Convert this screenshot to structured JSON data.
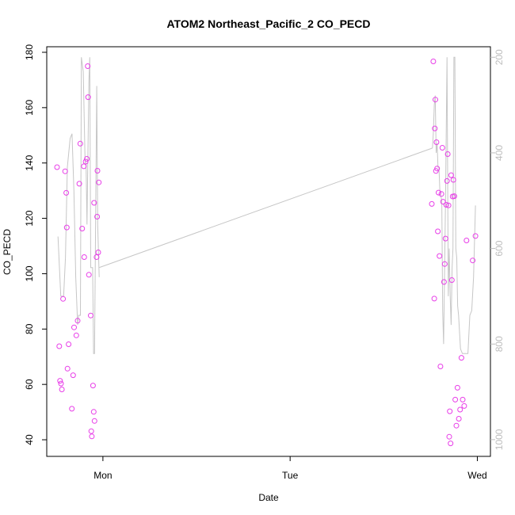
{
  "chart_data": {
    "type": "scatter",
    "title": "ATOM2 Northeast_Pacific_2 CO_PECD",
    "xlabel": "Date",
    "ylabel": "CO_PECD",
    "x_ticks": [
      "Mon",
      "Tue",
      "Wed"
    ],
    "x_tick_days": [
      1,
      2,
      3
    ],
    "xlim_days": [
      0.7,
      3.07
    ],
    "ylim": [
      34,
      182
    ],
    "y_ticks": [
      40,
      60,
      80,
      100,
      120,
      140,
      160,
      180
    ],
    "y2_ticks": [
      200,
      400,
      600,
      800,
      1000
    ],
    "y2lim": [
      1035,
      178
    ],
    "y2_reversed": true,
    "colors": {
      "points": "#e83ee8",
      "line": "#c6c6c6"
    },
    "series": [
      {
        "values_x_days": [
          0.755,
          0.767,
          0.771,
          0.776,
          0.781,
          0.787,
          0.798,
          0.804,
          0.807,
          0.811,
          0.817,
          0.834,
          0.841,
          0.846,
          0.858,
          0.865,
          0.874,
          0.879,
          0.889,
          0.898,
          0.9,
          0.908,
          0.914,
          0.919,
          0.921,
          0.925,
          0.935,
          0.938,
          0.941,
          0.947,
          0.951,
          0.953,
          0.955,
          0.966,
          0.969,
          0.971,
          0.975,
          0.978,
          2.757,
          2.765,
          2.77,
          2.773,
          2.776,
          2.779,
          2.782,
          2.785,
          2.789,
          2.793,
          2.798,
          2.803,
          2.808,
          2.813,
          2.817,
          2.822,
          2.826,
          2.83,
          2.834,
          2.838,
          2.842,
          2.846,
          2.85,
          2.853,
          2.857,
          2.86,
          2.864,
          2.868,
          2.872,
          2.877,
          2.882,
          2.888,
          2.894,
          2.901,
          2.908,
          2.915,
          2.922,
          2.93,
          2.942,
          2.975,
          2.99
        ],
        "values_y": [
          138.5,
          73.8,
          61.3,
          60.3,
          58.2,
          90.9,
          137.0,
          129.2,
          116.7,
          65.7,
          74.5,
          51.2,
          63.3,
          80.6,
          77.7,
          83.0,
          132.5,
          147.0,
          116.3,
          138.8,
          106.0,
          140.5,
          141.5,
          175.0,
          163.8,
          99.6,
          84.9,
          43.1,
          41.2,
          59.6,
          50.1,
          125.6,
          46.8,
          106.0,
          120.6,
          137.2,
          107.7,
          133.0,
          125.2,
          176.7,
          91.0,
          152.5,
          162.9,
          137.1,
          147.5,
          138.0,
          115.3,
          129.3,
          106.4,
          66.5,
          128.8,
          145.5,
          126.0,
          97.0,
          103.5,
          112.7,
          124.9,
          133.5,
          143.2,
          124.7,
          41.1,
          50.3,
          38.7,
          135.6,
          97.7,
          127.9,
          133.9,
          128.0,
          54.5,
          45.1,
          58.8,
          47.6,
          50.9,
          69.6,
          54.5,
          52.2,
          112.0,
          104.8,
          113.6
        ]
      },
      {
        "values_x_days": [
          0.76,
          0.775,
          0.79,
          0.8,
          0.81,
          0.825,
          0.835,
          0.845,
          0.855,
          0.865,
          0.87,
          0.88,
          0.885,
          0.895,
          0.905,
          0.91,
          0.915,
          0.925,
          0.93,
          0.935,
          0.945,
          0.95,
          0.955,
          0.96,
          0.967,
          0.972,
          0.98,
          2.76,
          2.765,
          2.77,
          2.775,
          2.78,
          2.785,
          2.79,
          2.795,
          2.8,
          2.81,
          2.815,
          2.82,
          2.83,
          2.838,
          2.845,
          2.85,
          2.855,
          2.86,
          2.865,
          2.87,
          2.875,
          2.88,
          2.885,
          2.89,
          2.895,
          2.9,
          2.91,
          2.92,
          2.93,
          2.94,
          2.95,
          2.96,
          2.97,
          2.98,
          2.99
        ],
        "values_y2": [
          575,
          700,
          700,
          620,
          430,
          370,
          360,
          480,
          660,
          760,
          740,
          740,
          200,
          230,
          420,
          420,
          550,
          250,
          200,
          640,
          640,
          820,
          820,
          600,
          260,
          550,
          660,
          390,
          360,
          300,
          280,
          400,
          380,
          430,
          430,
          480,
          500,
          730,
          800,
          500,
          200,
          700,
          600,
          700,
          760,
          640,
          600,
          200,
          200,
          600,
          620,
          720,
          740,
          810,
          820,
          820,
          820,
          820,
          740,
          730,
          660,
          510
        ],
        "bridge_y2": [
          640,
          390
        ]
      }
    ]
  }
}
